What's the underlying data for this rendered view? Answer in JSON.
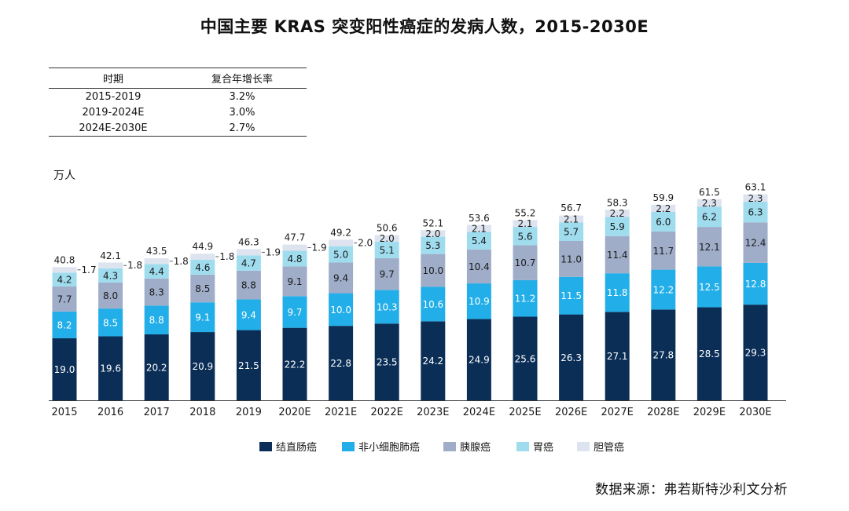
{
  "title": "中国主要 KRAS 突变阳性癌症的发病人数，2015-2030E",
  "cagr_table": {
    "headers": [
      "时期",
      "复合年增长率"
    ],
    "rows": [
      {
        "period": "2015-2019",
        "rate": "3.2%"
      },
      {
        "period": "2019-2024E",
        "rate": "3.0%"
      },
      {
        "period": "2024E-2030E",
        "rate": "2.7%"
      }
    ]
  },
  "unit_label": "万人",
  "source": "数据来源：弗若斯特沙利文分析",
  "chart_data": {
    "type": "bar",
    "stacked": true,
    "categories": [
      "2015",
      "2016",
      "2017",
      "2018",
      "2019",
      "2020E",
      "2021E",
      "2022E",
      "2023E",
      "2024E",
      "2025E",
      "2026E",
      "2027E",
      "2028E",
      "2029E",
      "2030E"
    ],
    "series": [
      {
        "name": "结直肠癌",
        "color": "#0b2e57",
        "label_color": "#ffffff",
        "values": [
          19.0,
          19.6,
          20.2,
          20.9,
          21.5,
          22.2,
          22.8,
          23.5,
          24.2,
          24.9,
          25.6,
          26.3,
          27.1,
          27.8,
          28.5,
          29.3
        ]
      },
      {
        "name": "非小细胞肺癌",
        "color": "#22aee8",
        "label_color": "#ffffff",
        "values": [
          8.2,
          8.5,
          8.8,
          9.1,
          9.4,
          9.7,
          10.0,
          10.3,
          10.6,
          10.9,
          11.2,
          11.5,
          11.8,
          12.2,
          12.5,
          12.8
        ]
      },
      {
        "name": "胰腺癌",
        "color": "#9fadc9",
        "label_color": "#1a1a1a",
        "values": [
          7.7,
          8.0,
          8.3,
          8.5,
          8.8,
          9.1,
          9.4,
          9.7,
          10.0,
          10.4,
          10.7,
          11.0,
          11.4,
          11.7,
          12.1,
          12.4
        ]
      },
      {
        "name": "胃癌",
        "color": "#9fdcee",
        "label_color": "#1a1a1a",
        "values": [
          4.2,
          4.3,
          4.4,
          4.6,
          4.7,
          4.8,
          5.0,
          5.1,
          5.3,
          5.4,
          5.6,
          5.7,
          5.9,
          6.0,
          6.2,
          6.3
        ]
      },
      {
        "name": "胆管癌",
        "color": "#dde4ef",
        "label_color": "#1a1a1a",
        "values": [
          1.7,
          1.8,
          1.8,
          1.8,
          1.9,
          1.9,
          2.0,
          2.0,
          2.0,
          2.1,
          2.1,
          2.1,
          2.2,
          2.2,
          2.3,
          2.3
        ]
      }
    ],
    "totals": [
      40.8,
      42.1,
      43.5,
      44.9,
      46.3,
      47.7,
      49.2,
      50.6,
      52.1,
      53.6,
      55.2,
      56.7,
      58.3,
      59.9,
      61.5,
      63.1
    ],
    "outside_label_series": "胆管癌",
    "outside_label_count": 7,
    "ylim": [
      0,
      65
    ],
    "grid": false,
    "legend": "bottom-center"
  }
}
